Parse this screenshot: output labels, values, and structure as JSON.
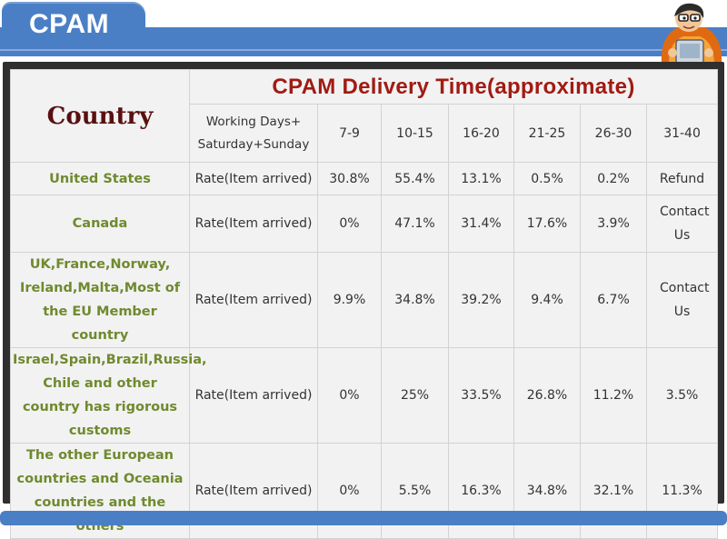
{
  "header": {
    "title": "CPAM"
  },
  "table": {
    "corner_label": "Country",
    "title": "CPAM Delivery Time(approximate)",
    "column_header_label": "Working Days+ Saturday+Sunday",
    "day_ranges": [
      "7-9",
      "10-15",
      "16-20",
      "21-25",
      "26-30",
      "31-40"
    ],
    "rows": [
      {
        "country": "United States",
        "label": "Rate(Item arrived)",
        "values": [
          "30.8%",
          "55.4%",
          "13.1%",
          "0.5%",
          "0.2%",
          "Refund"
        ]
      },
      {
        "country": "Canada",
        "label": "Rate(Item arrived)",
        "values": [
          "0%",
          "47.1%",
          "31.4%",
          "17.6%",
          "3.9%",
          "Contact Us"
        ]
      },
      {
        "country": "UK,France,Norway, Ireland,Malta,Most of the EU Member country",
        "label": "Rate(Item arrived)",
        "values": [
          "9.9%",
          "34.8%",
          "39.2%",
          "9.4%",
          "6.7%",
          "Contact Us"
        ]
      },
      {
        "country": "Israel,Spain,Brazil,Russia, Chile and other country has rigorous customs",
        "label": "Rate(Item arrived)",
        "values": [
          "0%",
          "25%",
          "33.5%",
          "26.8%",
          "11.2%",
          "3.5%"
        ]
      },
      {
        "country": "The other European countries and Oceania countries and the others",
        "label": "Rate(Item arrived)",
        "values": [
          "0%",
          "5.5%",
          "16.3%",
          "34.8%",
          "32.1%",
          "11.3%"
        ]
      }
    ]
  }
}
